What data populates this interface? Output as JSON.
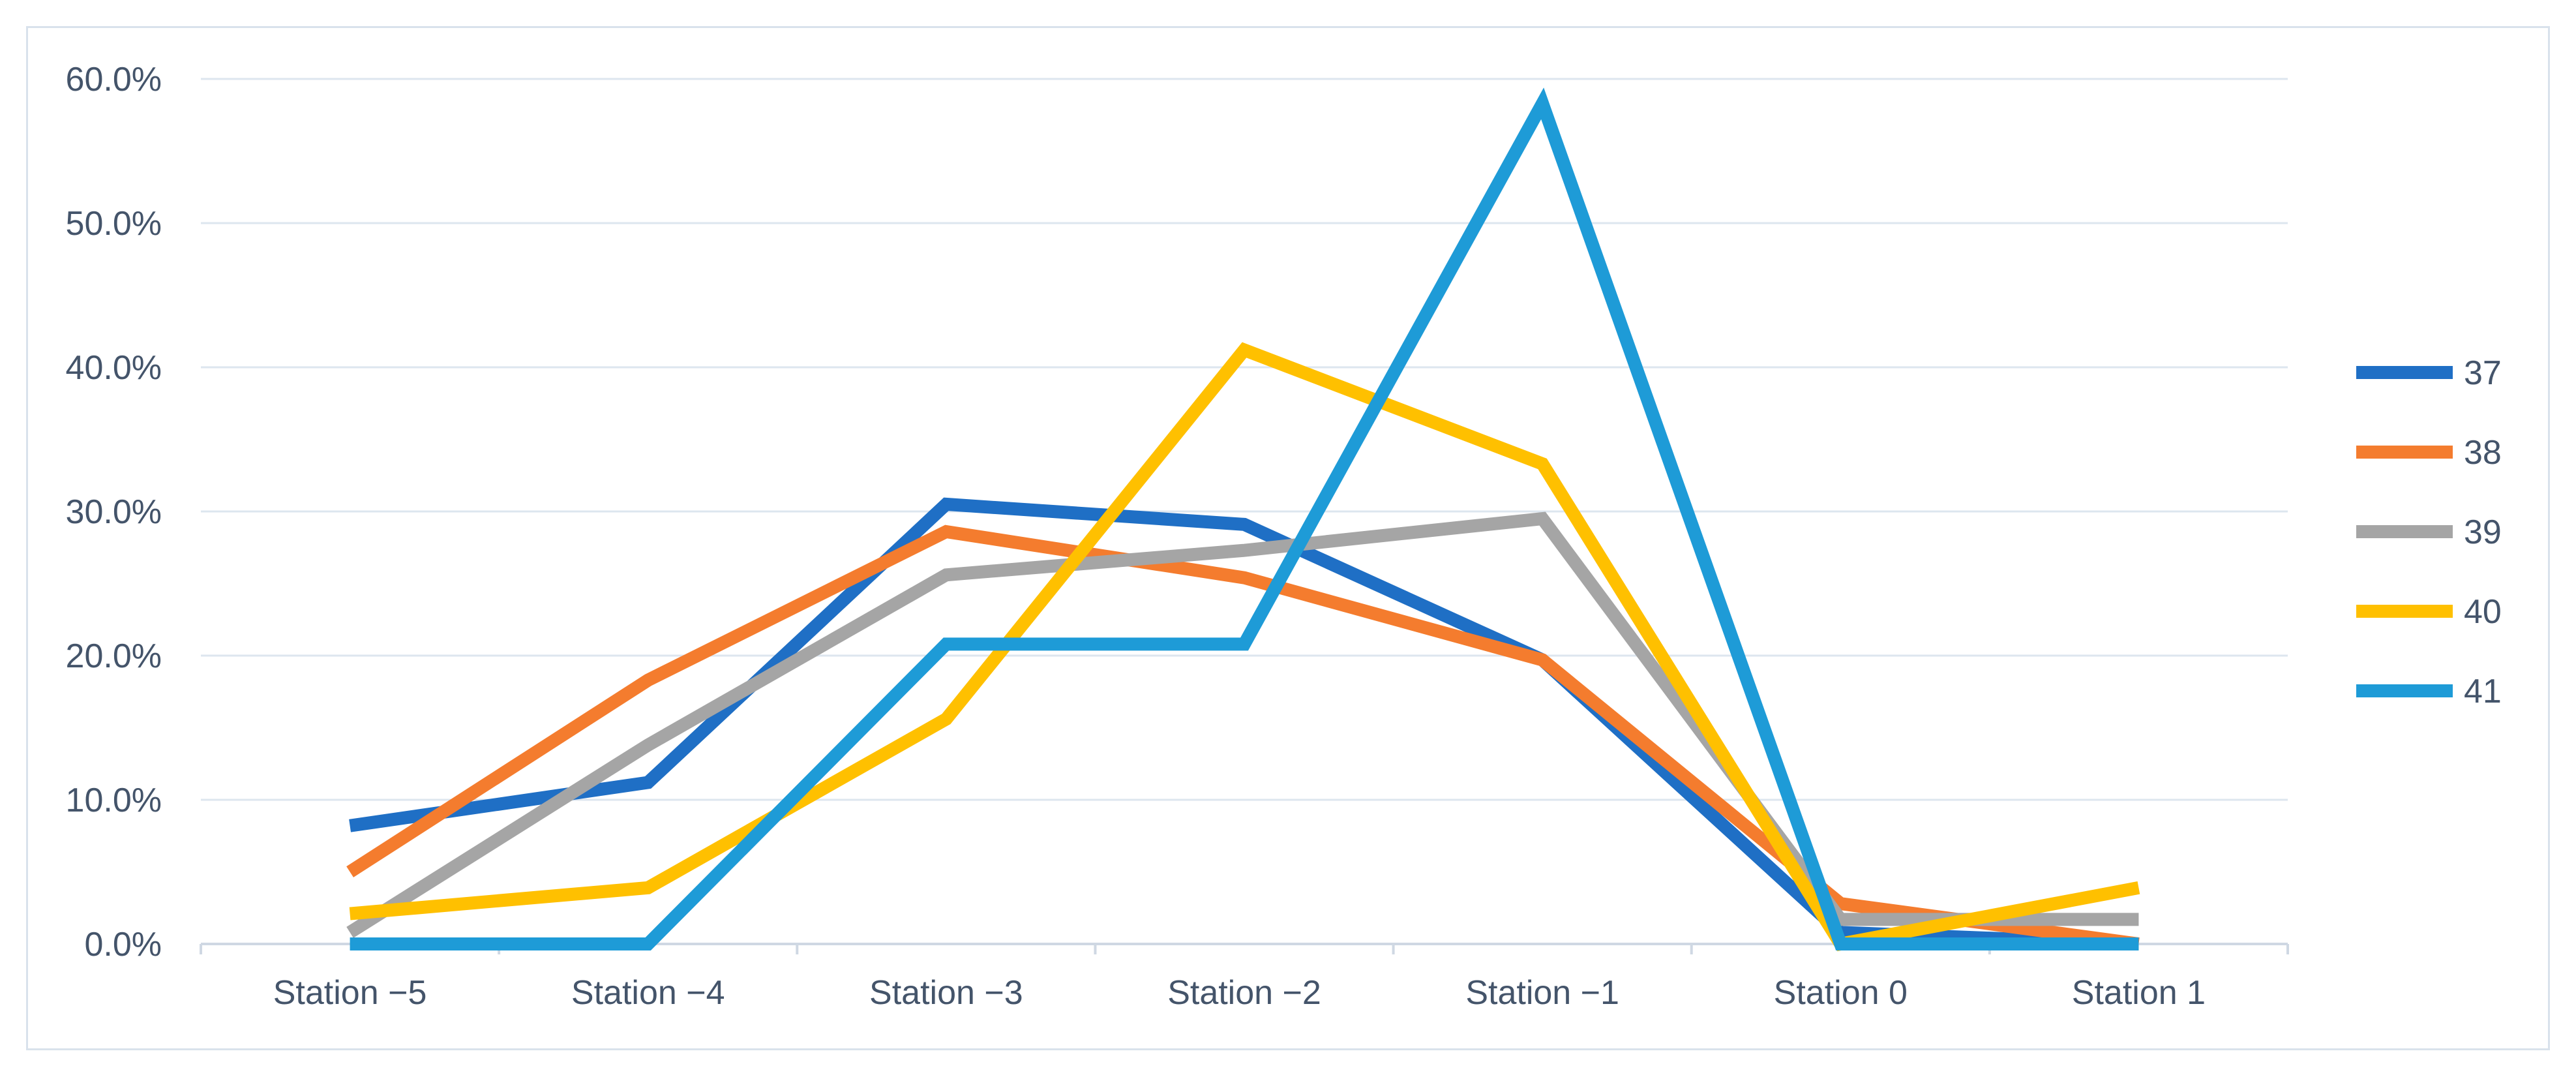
{
  "chart_data": {
    "type": "line",
    "categories": [
      "Station −5",
      "Station −4",
      "Station −3",
      "Station −2",
      "Station −1",
      "Station 0",
      "Station 1"
    ],
    "ylim": [
      0,
      60
    ],
    "yticks": [
      0,
      10,
      20,
      30,
      40,
      50,
      60
    ],
    "ytick_labels": [
      "0.0%",
      "10.0%",
      "20.0%",
      "30.0%",
      "40.0%",
      "50.0%",
      "60.0%"
    ],
    "grid": true,
    "legend_position": "right",
    "series": [
      {
        "name": "37",
        "color": "#1f6fc5",
        "values": [
          8.2,
          11.2,
          30.5,
          29.1,
          19.7,
          0.8,
          0.0
        ]
      },
      {
        "name": "38",
        "color": "#f47c2e",
        "values": [
          5.0,
          18.3,
          28.6,
          25.4,
          19.7,
          2.8,
          0.0
        ]
      },
      {
        "name": "39",
        "color": "#a5a5a5",
        "values": [
          0.8,
          13.8,
          25.6,
          27.3,
          29.5,
          1.7,
          1.7
        ]
      },
      {
        "name": "40",
        "color": "#ffc000",
        "values": [
          2.1,
          3.9,
          15.6,
          41.2,
          33.3,
          0.0,
          3.9
        ]
      },
      {
        "name": "41",
        "color": "#1e9bd7",
        "values": [
          0.0,
          0.0,
          20.8,
          20.8,
          58.3,
          0.0,
          0.0
        ]
      }
    ]
  }
}
